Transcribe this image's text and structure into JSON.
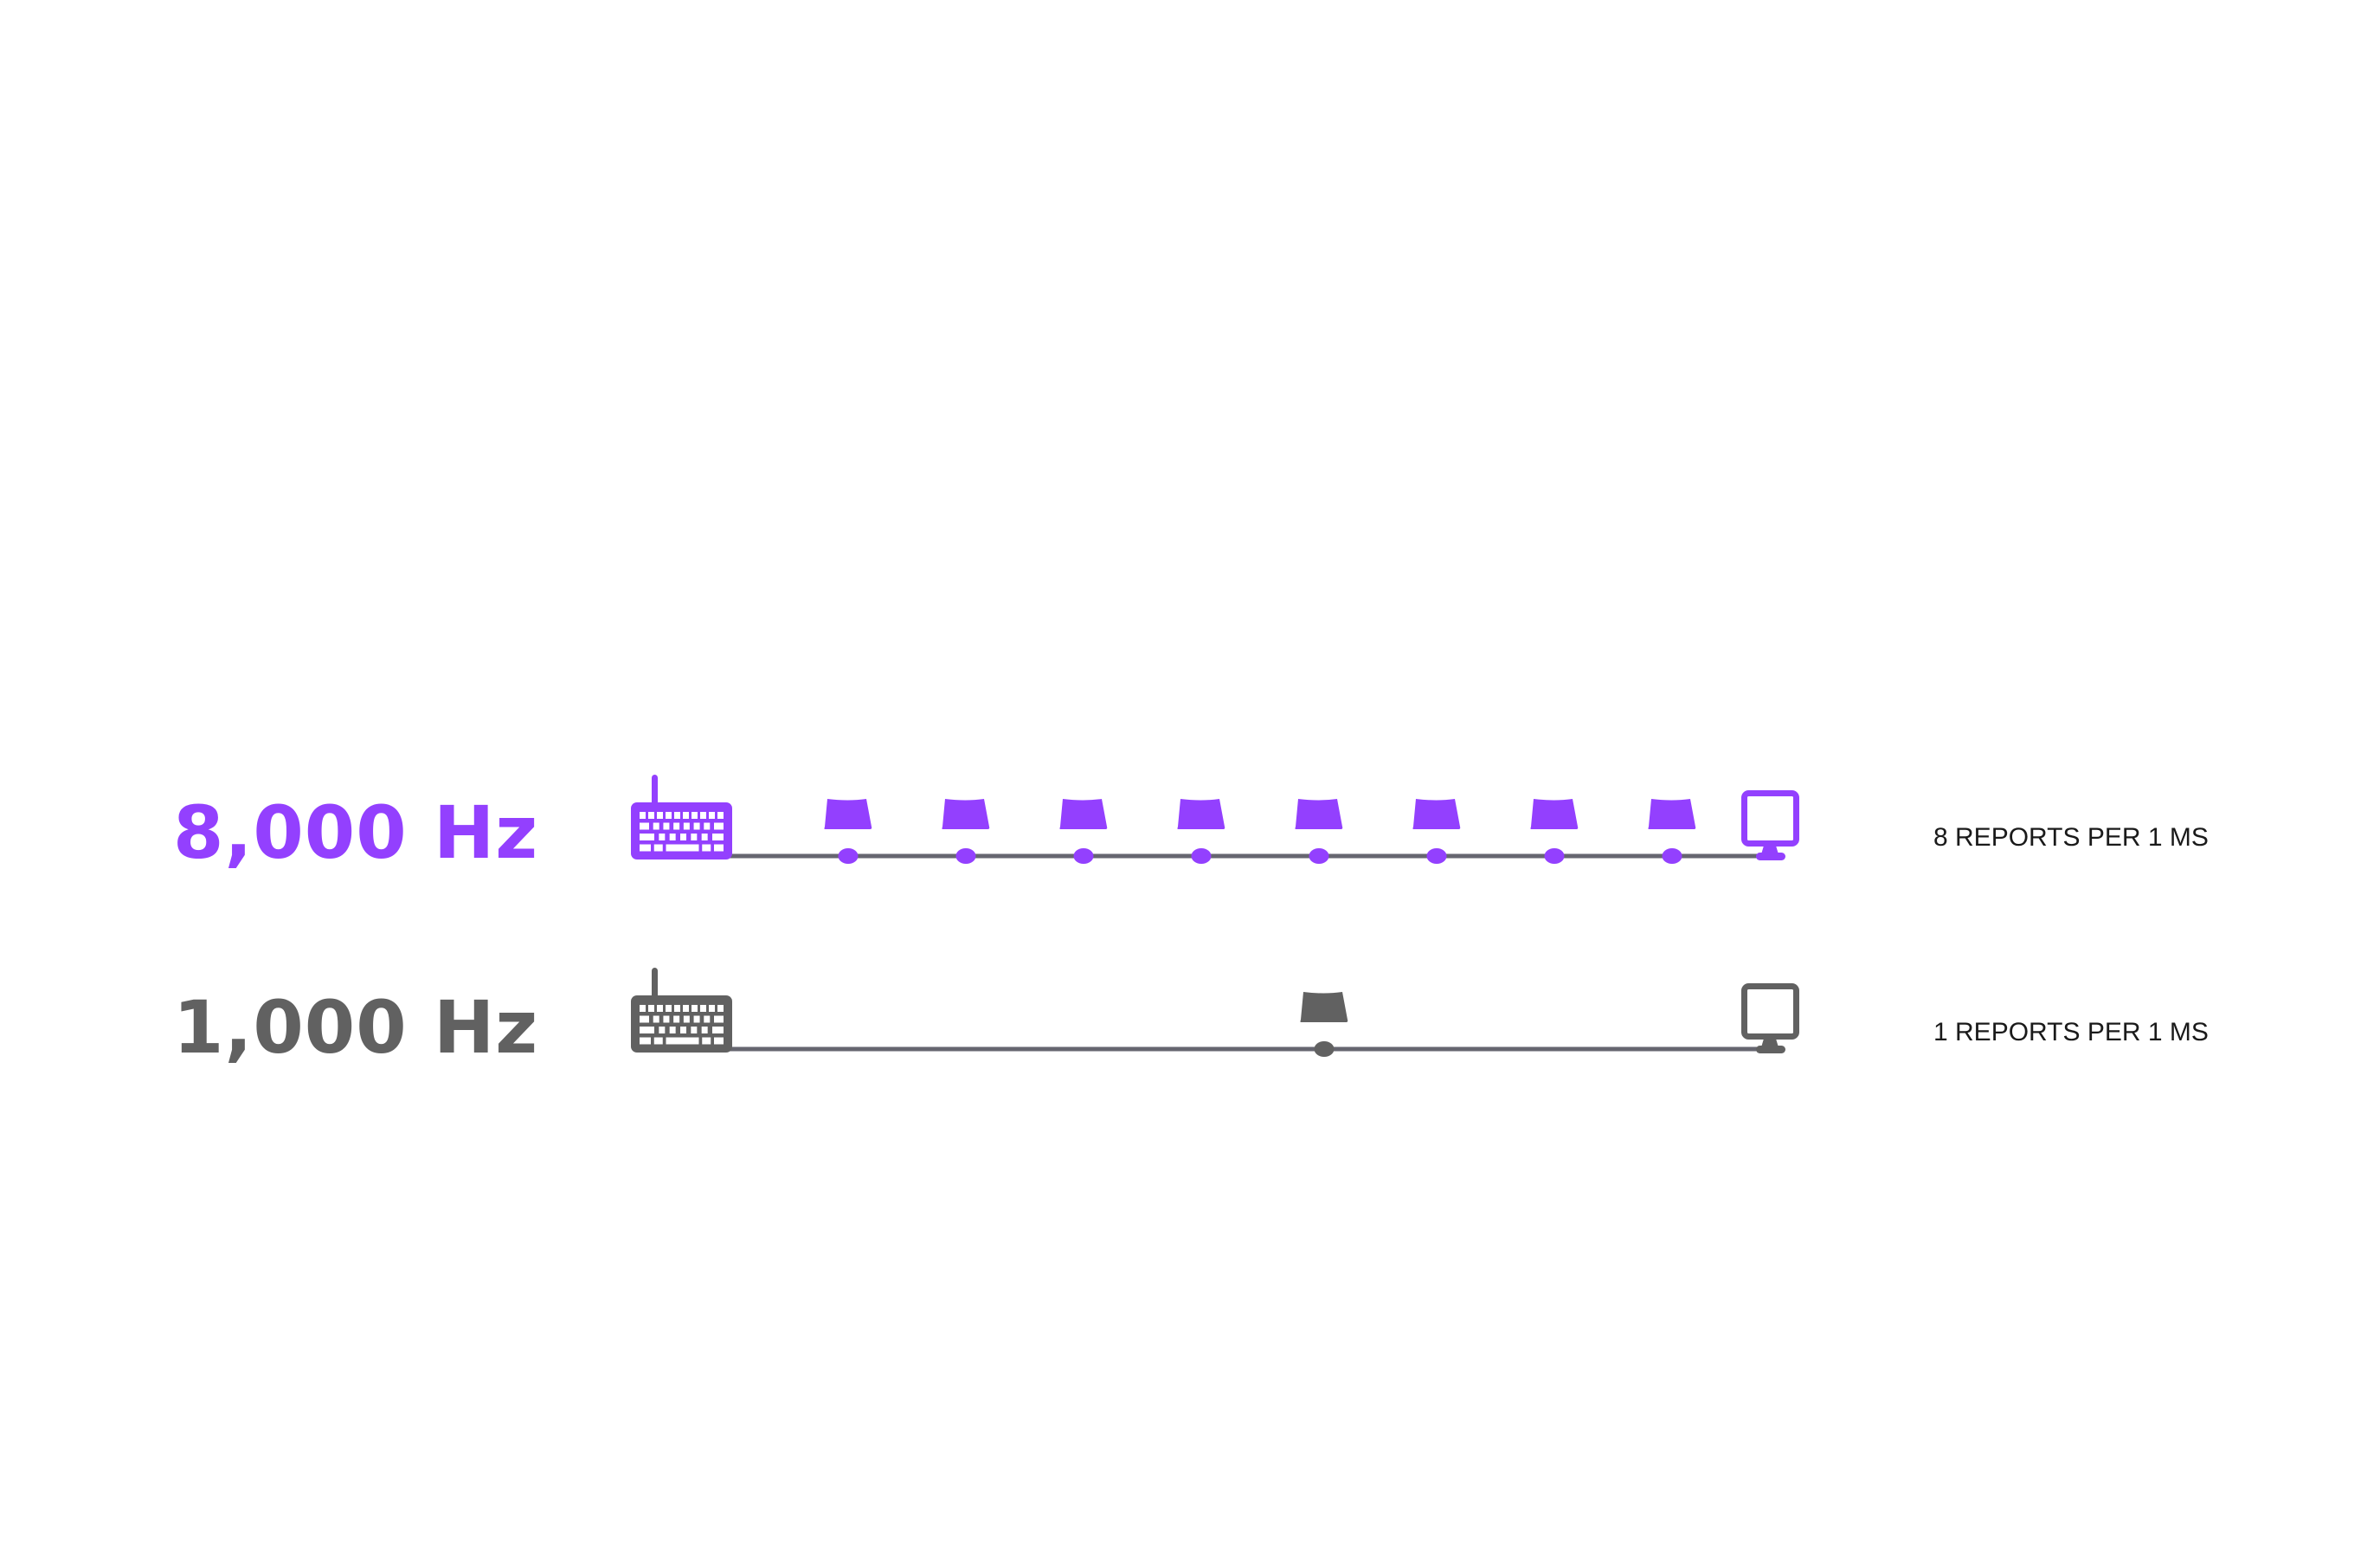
{
  "rows": [
    {
      "label": "8,000 Hz",
      "caption": "8 REPORTS PER 1 MS",
      "reports": 8,
      "color": "#9340fe"
    },
    {
      "label": "1,000 Hz",
      "caption": "1 REPORTS PER 1 MS",
      "reports": 1,
      "color": "#616161"
    }
  ],
  "line_color": "#666670",
  "icons": [
    "keyboard-icon",
    "keycap-icon",
    "monitor-icon"
  ]
}
